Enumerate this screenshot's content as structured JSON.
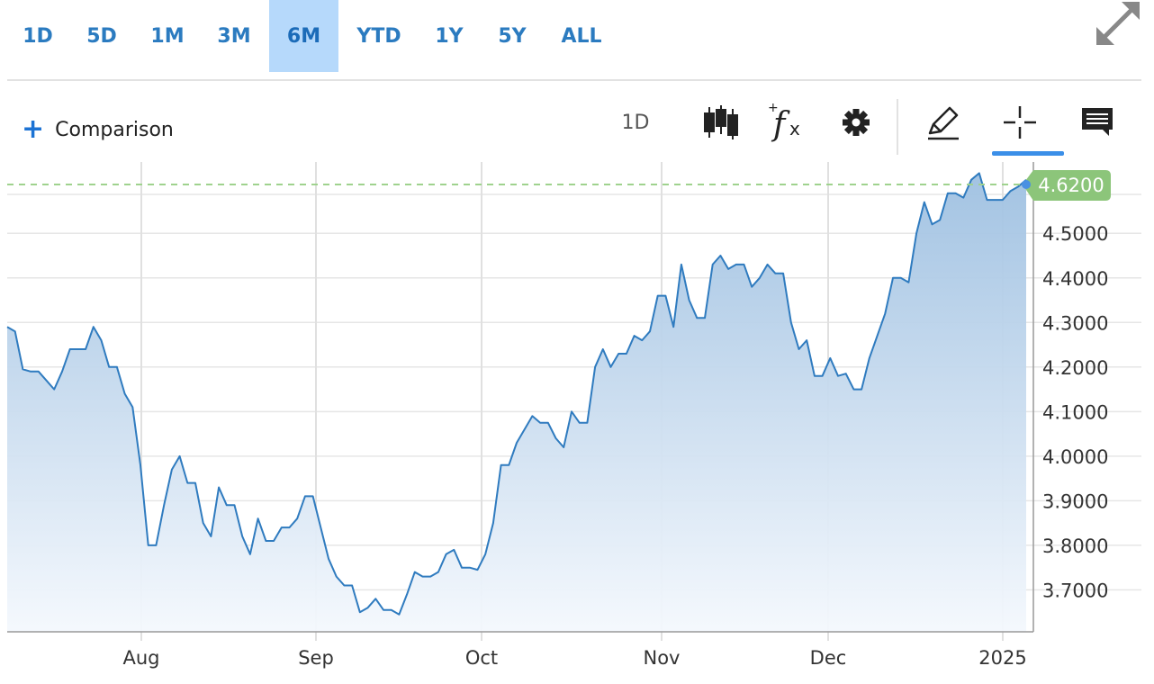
{
  "range_tabs": [
    {
      "label": "1D"
    },
    {
      "label": "5D"
    },
    {
      "label": "1M"
    },
    {
      "label": "3M"
    },
    {
      "label": "6M",
      "active": true
    },
    {
      "label": "YTD"
    },
    {
      "label": "1Y"
    },
    {
      "label": "5Y"
    },
    {
      "label": "ALL"
    }
  ],
  "toolbar": {
    "comparison_label": "Comparison",
    "interval_label": "1D",
    "icons": [
      "candlestick-icon",
      "function-icon",
      "gear-icon",
      "pencil-icon",
      "crosshair-icon",
      "comment-icon"
    ]
  },
  "colors": {
    "accent": "#2b7bc0",
    "active_tab_bg": "#b6d9fb",
    "line": "#2f7bbf",
    "last_price_badge": "#8cc57a",
    "last_price_dash": "#9fd28e"
  },
  "chart_data": {
    "type": "area",
    "x_tick_labels": [
      "Aug",
      "Sep",
      "Oct",
      "Nov",
      "Dec",
      "2025"
    ],
    "y_tick_labels": [
      "3.7000",
      "3.8000",
      "3.9000",
      "4.0000",
      "4.1000",
      "4.2000",
      "4.3000",
      "4.4000",
      "4.5000"
    ],
    "ylim": [
      3.61,
      4.66
    ],
    "last_value": 4.62,
    "last_value_label": "4.6200",
    "grid": true,
    "values": [
      4.29,
      4.28,
      4.195,
      4.19,
      4.19,
      4.17,
      4.15,
      4.19,
      4.24,
      4.24,
      4.24,
      4.29,
      4.26,
      4.2,
      4.2,
      4.14,
      4.11,
      3.98,
      3.8,
      3.8,
      3.89,
      3.97,
      4.0,
      3.94,
      3.94,
      3.85,
      3.82,
      3.93,
      3.89,
      3.89,
      3.82,
      3.78,
      3.86,
      3.81,
      3.81,
      3.84,
      3.84,
      3.86,
      3.91,
      3.91,
      3.84,
      3.77,
      3.73,
      3.71,
      3.71,
      3.65,
      3.66,
      3.68,
      3.655,
      3.655,
      3.645,
      3.69,
      3.74,
      3.73,
      3.73,
      3.74,
      3.78,
      3.79,
      3.75,
      3.75,
      3.745,
      3.78,
      3.85,
      3.98,
      3.98,
      4.03,
      4.06,
      4.09,
      4.075,
      4.075,
      4.04,
      4.02,
      4.1,
      4.075,
      4.075,
      4.2,
      4.24,
      4.2,
      4.23,
      4.23,
      4.27,
      4.26,
      4.28,
      4.36,
      4.36,
      4.29,
      4.43,
      4.35,
      4.31,
      4.31,
      4.43,
      4.45,
      4.42,
      4.43,
      4.43,
      4.38,
      4.4,
      4.43,
      4.41,
      4.41,
      4.3,
      4.24,
      4.26,
      4.18,
      4.18,
      4.22,
      4.18,
      4.185,
      4.15,
      4.15,
      4.22,
      4.27,
      4.32,
      4.4,
      4.4,
      4.39,
      4.5,
      4.57,
      4.52,
      4.53,
      4.59,
      4.59,
      4.58,
      4.62,
      4.635,
      4.575,
      4.575,
      4.575,
      4.595,
      4.605,
      4.62
    ]
  }
}
